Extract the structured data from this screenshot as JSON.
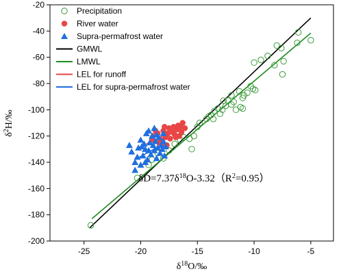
{
  "chart_data": {
    "type": "scatter",
    "xlabel": "δ18O/‰",
    "ylabel": "δ2H/‰",
    "xlim": [
      -28,
      -3
    ],
    "ylim": [
      -200,
      -20
    ],
    "xticks": [
      -25,
      -20,
      -15,
      -10,
      -5
    ],
    "yticks": [
      -200,
      -180,
      -160,
      -140,
      -120,
      -100,
      -80,
      -60,
      -40,
      -20
    ],
    "xtick_labels": [
      "-25",
      "-20",
      "-15",
      "-10",
      "-5"
    ],
    "ytick_labels": [
      "-200",
      "-180",
      "-160",
      "-140",
      "-120",
      "-100",
      "-80",
      "-60",
      "-40",
      "-20"
    ],
    "annotation": {
      "x": -20.2,
      "y": -152,
      "delta_d": "δD=7.37δ",
      "sup18": "18",
      "mid": "O-3.32（R",
      "sup2": "2",
      "tail": "=0.95）"
    },
    "legend": [
      {
        "label": "Precipitation",
        "marker": "open-circle",
        "color": "#3a9a3a"
      },
      {
        "label": "River water",
        "marker": "filled-circle",
        "color": "#e84545"
      },
      {
        "label": "Supra-permafrost  water",
        "marker": "filled-triangle",
        "color": "#1f6fe0"
      },
      {
        "label": "GMWL",
        "marker": "line",
        "color": "#000000"
      },
      {
        "label": "LMWL",
        "marker": "line",
        "color": "#1f8a1f"
      },
      {
        "label": "LEL for runoff",
        "marker": "line",
        "color": "#e84545"
      },
      {
        "label": "LEL for supra-permafrost water",
        "marker": "line",
        "color": "#1f6fe0"
      }
    ],
    "lines": [
      {
        "name": "GMWL",
        "color": "#000000",
        "points": [
          [
            -24.5,
            -190
          ],
          [
            -5.0,
            -30
          ]
        ]
      },
      {
        "name": "LMWL",
        "color": "#1f8a1f",
        "points": [
          [
            -24.3,
            -183
          ],
          [
            -5.0,
            -41.5
          ]
        ]
      },
      {
        "name": "LEL for runoff",
        "color": "#e84545",
        "points": [
          [
            -19.5,
            -126
          ],
          [
            -16.6,
            -114
          ]
        ]
      },
      {
        "name": "LEL for supra-permafrost water",
        "color": "#1f6fe0",
        "points": [
          [
            -20.3,
            -137
          ],
          [
            -18.0,
            -126
          ]
        ]
      }
    ],
    "series": [
      {
        "name": "Precipitation",
        "marker": "open-circle",
        "color": "#3a9a3a",
        "points": [
          [
            -24.4,
            -188
          ],
          [
            -20.3,
            -152
          ],
          [
            -19.3,
            -142
          ],
          [
            -19.0,
            -138
          ],
          [
            -18.5,
            -133
          ],
          [
            -18.0,
            -137
          ],
          [
            -17.5,
            -131
          ],
          [
            -17.0,
            -126
          ],
          [
            -16.5,
            -123
          ],
          [
            -16.2,
            -121
          ],
          [
            -15.7,
            -122
          ],
          [
            -15.3,
            -120
          ],
          [
            -15.0,
            -113
          ],
          [
            -14.8,
            -110
          ],
          [
            -15.5,
            -130
          ],
          [
            -14.2,
            -107
          ],
          [
            -13.8,
            -104
          ],
          [
            -13.5,
            -101
          ],
          [
            -13.2,
            -99
          ],
          [
            -13.0,
            -103
          ],
          [
            -12.8,
            -100
          ],
          [
            -12.5,
            -97
          ],
          [
            -12.3,
            -93
          ],
          [
            -12.0,
            -89
          ],
          [
            -11.8,
            -94
          ],
          [
            -11.6,
            -100
          ],
          [
            -11.2,
            -98
          ],
          [
            -11.0,
            -91
          ],
          [
            -10.6,
            -87
          ],
          [
            -10.3,
            -82
          ],
          [
            -10.1,
            -84
          ],
          [
            -9.9,
            -85
          ],
          [
            -11.0,
            -99
          ],
          [
            -10.0,
            -64
          ],
          [
            -9.4,
            -62
          ],
          [
            -8.8,
            -59
          ],
          [
            -8.2,
            -66
          ],
          [
            -8.0,
            -51
          ],
          [
            -7.6,
            -53
          ],
          [
            -7.4,
            -63
          ],
          [
            -7.5,
            -73
          ],
          [
            -6.2,
            -49
          ],
          [
            -6.1,
            -41
          ],
          [
            -5.0,
            -47
          ],
          [
            -10.9,
            -89
          ],
          [
            -12.0,
            -96
          ],
          [
            -13.6,
            -107
          ],
          [
            -14.0,
            -105
          ],
          [
            -12.7,
            -93
          ],
          [
            -11.3,
            -86
          ]
        ]
      },
      {
        "name": "River water",
        "marker": "filled-circle",
        "color": "#e84545",
        "points": [
          [
            -18.9,
            -120
          ],
          [
            -18.5,
            -118
          ],
          [
            -18.2,
            -123
          ],
          [
            -18.0,
            -116
          ],
          [
            -17.8,
            -121
          ],
          [
            -17.6,
            -118
          ],
          [
            -17.4,
            -122
          ],
          [
            -17.2,
            -117
          ],
          [
            -17.0,
            -119
          ],
          [
            -16.8,
            -115
          ],
          [
            -16.6,
            -120
          ],
          [
            -16.5,
            -113
          ],
          [
            -16.3,
            -110
          ],
          [
            -16.1,
            -114
          ],
          [
            -16.4,
            -117
          ],
          [
            -17.9,
            -113
          ],
          [
            -17.5,
            -114
          ],
          [
            -17.1,
            -113
          ],
          [
            -18.4,
            -125
          ],
          [
            -17.7,
            -127
          ],
          [
            -19.0,
            -123
          ],
          [
            -18.7,
            -116
          ],
          [
            -16.9,
            -121
          ],
          [
            -16.7,
            -112
          ],
          [
            -18.1,
            -126
          ]
        ]
      },
      {
        "name": "Supra-permafrost  water",
        "marker": "filled-triangle",
        "color": "#1f6fe0",
        "points": [
          [
            -21.0,
            -127
          ],
          [
            -20.8,
            -132
          ],
          [
            -20.5,
            -146
          ],
          [
            -20.5,
            -140
          ],
          [
            -20.2,
            -129
          ],
          [
            -20.0,
            -142
          ],
          [
            -20.0,
            -123
          ],
          [
            -19.8,
            -135
          ],
          [
            -19.7,
            -126
          ],
          [
            -19.6,
            -130
          ],
          [
            -19.5,
            -118
          ],
          [
            -19.4,
            -138
          ],
          [
            -19.3,
            -131
          ],
          [
            -19.2,
            -125
          ],
          [
            -19.1,
            -134
          ],
          [
            -19.0,
            -120
          ],
          [
            -18.9,
            -127
          ],
          [
            -18.8,
            -131
          ],
          [
            -18.7,
            -124
          ],
          [
            -18.6,
            -137
          ],
          [
            -18.5,
            -129
          ],
          [
            -18.4,
            -121
          ],
          [
            -18.3,
            -133
          ],
          [
            -18.2,
            -127
          ],
          [
            -18.1,
            -130
          ],
          [
            -18.0,
            -124
          ],
          [
            -17.9,
            -135
          ],
          [
            -17.8,
            -128
          ],
          [
            -19.9,
            -128
          ],
          [
            -20.3,
            -136
          ],
          [
            -19.3,
            -116
          ],
          [
            -18.8,
            -114
          ],
          [
            -18.0,
            -118
          ],
          [
            -19.6,
            -140
          ],
          [
            -18.6,
            -119
          ]
        ]
      }
    ]
  }
}
